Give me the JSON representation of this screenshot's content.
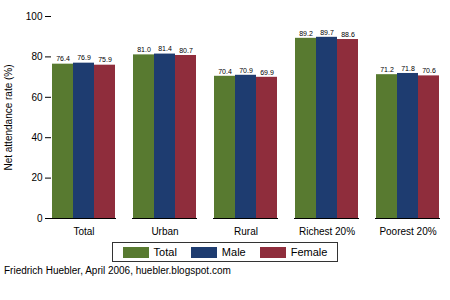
{
  "chart_data": {
    "type": "bar",
    "categories": [
      "Total",
      "Urban",
      "Rural",
      "Richest 20%",
      "Poorest 20%"
    ],
    "series": [
      {
        "name": "Total",
        "color": "#587a30",
        "values": [
          76.4,
          81.0,
          70.4,
          89.2,
          71.2
        ],
        "value_labels": [
          "76.4",
          "81.0",
          "70.4",
          "89.2",
          "71.2"
        ]
      },
      {
        "name": "Male",
        "color": "#1e3c70",
        "values": [
          76.9,
          81.4,
          70.9,
          89.7,
          71.8
        ],
        "value_labels": [
          "76.9",
          "81.4",
          "70.9",
          "89.7",
          "71.8"
        ]
      },
      {
        "name": "Female",
        "color": "#8f2d3c",
        "values": [
          75.9,
          80.7,
          69.9,
          88.6,
          70.6
        ],
        "value_labels": [
          "75.9",
          "80.7",
          "69.9",
          "88.6",
          "70.6"
        ]
      }
    ],
    "y_label": "Net attendance rate (%)",
    "ylim": [
      0,
      100
    ],
    "yticks": [
      0,
      20,
      40,
      60,
      80,
      100
    ],
    "grid": false,
    "legend": "bottom",
    "data_labels": true,
    "caption": "Friedrich Huebler, April 2006, huebler.blogspot.com"
  }
}
